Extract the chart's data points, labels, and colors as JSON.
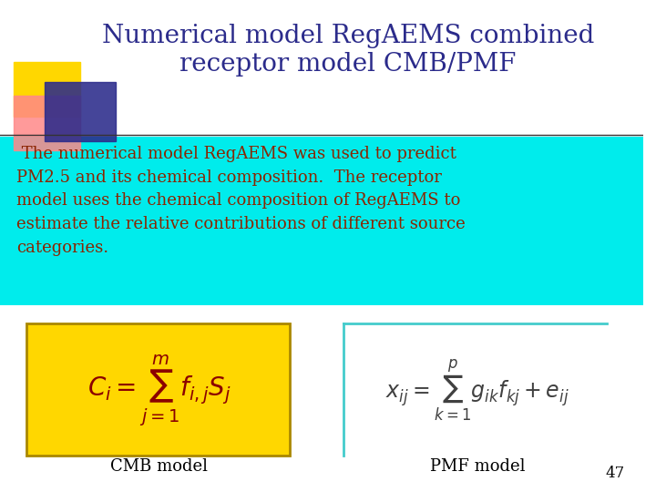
{
  "title_line1": "Numerical model RegAEMS combined",
  "title_line2": "receptor model CMB/PMF",
  "title_color": "#2B2B8B",
  "title_fontsize": 20,
  "body_text": " The numerical model RegAEMS was used to predict\nPM2.5 and its chemical composition.  The receptor\nmodel uses the chemical composition of RegAEMS to\nestimate the relative contributions of different source\ncategories.",
  "body_bg": "#00ECEC",
  "body_text_color": "#8B2500",
  "body_fontsize": 13.0,
  "cmb_box_color": "#FFD700",
  "cmb_box_edge": "#AA8800",
  "cmb_formula": "$C_i = \\sum_{j=1}^{m} f_{i,j} S_j$",
  "cmb_label": "CMB model",
  "pmf_formula": "$x_{ij} = \\sum_{k=1}^{p} g_{ik} f_{kj} + e_{ij}$",
  "pmf_label": "PMF model",
  "formula_fontsize": 17,
  "label_fontsize": 13,
  "slide_number": "47",
  "bg_color": "#FFFFFF",
  "deco_yellow": "#FFD700",
  "deco_pink": "#FF8888",
  "deco_blue": "#2B2B8B",
  "line_color": "#333333",
  "pmf_border_color": "#44CCCC"
}
